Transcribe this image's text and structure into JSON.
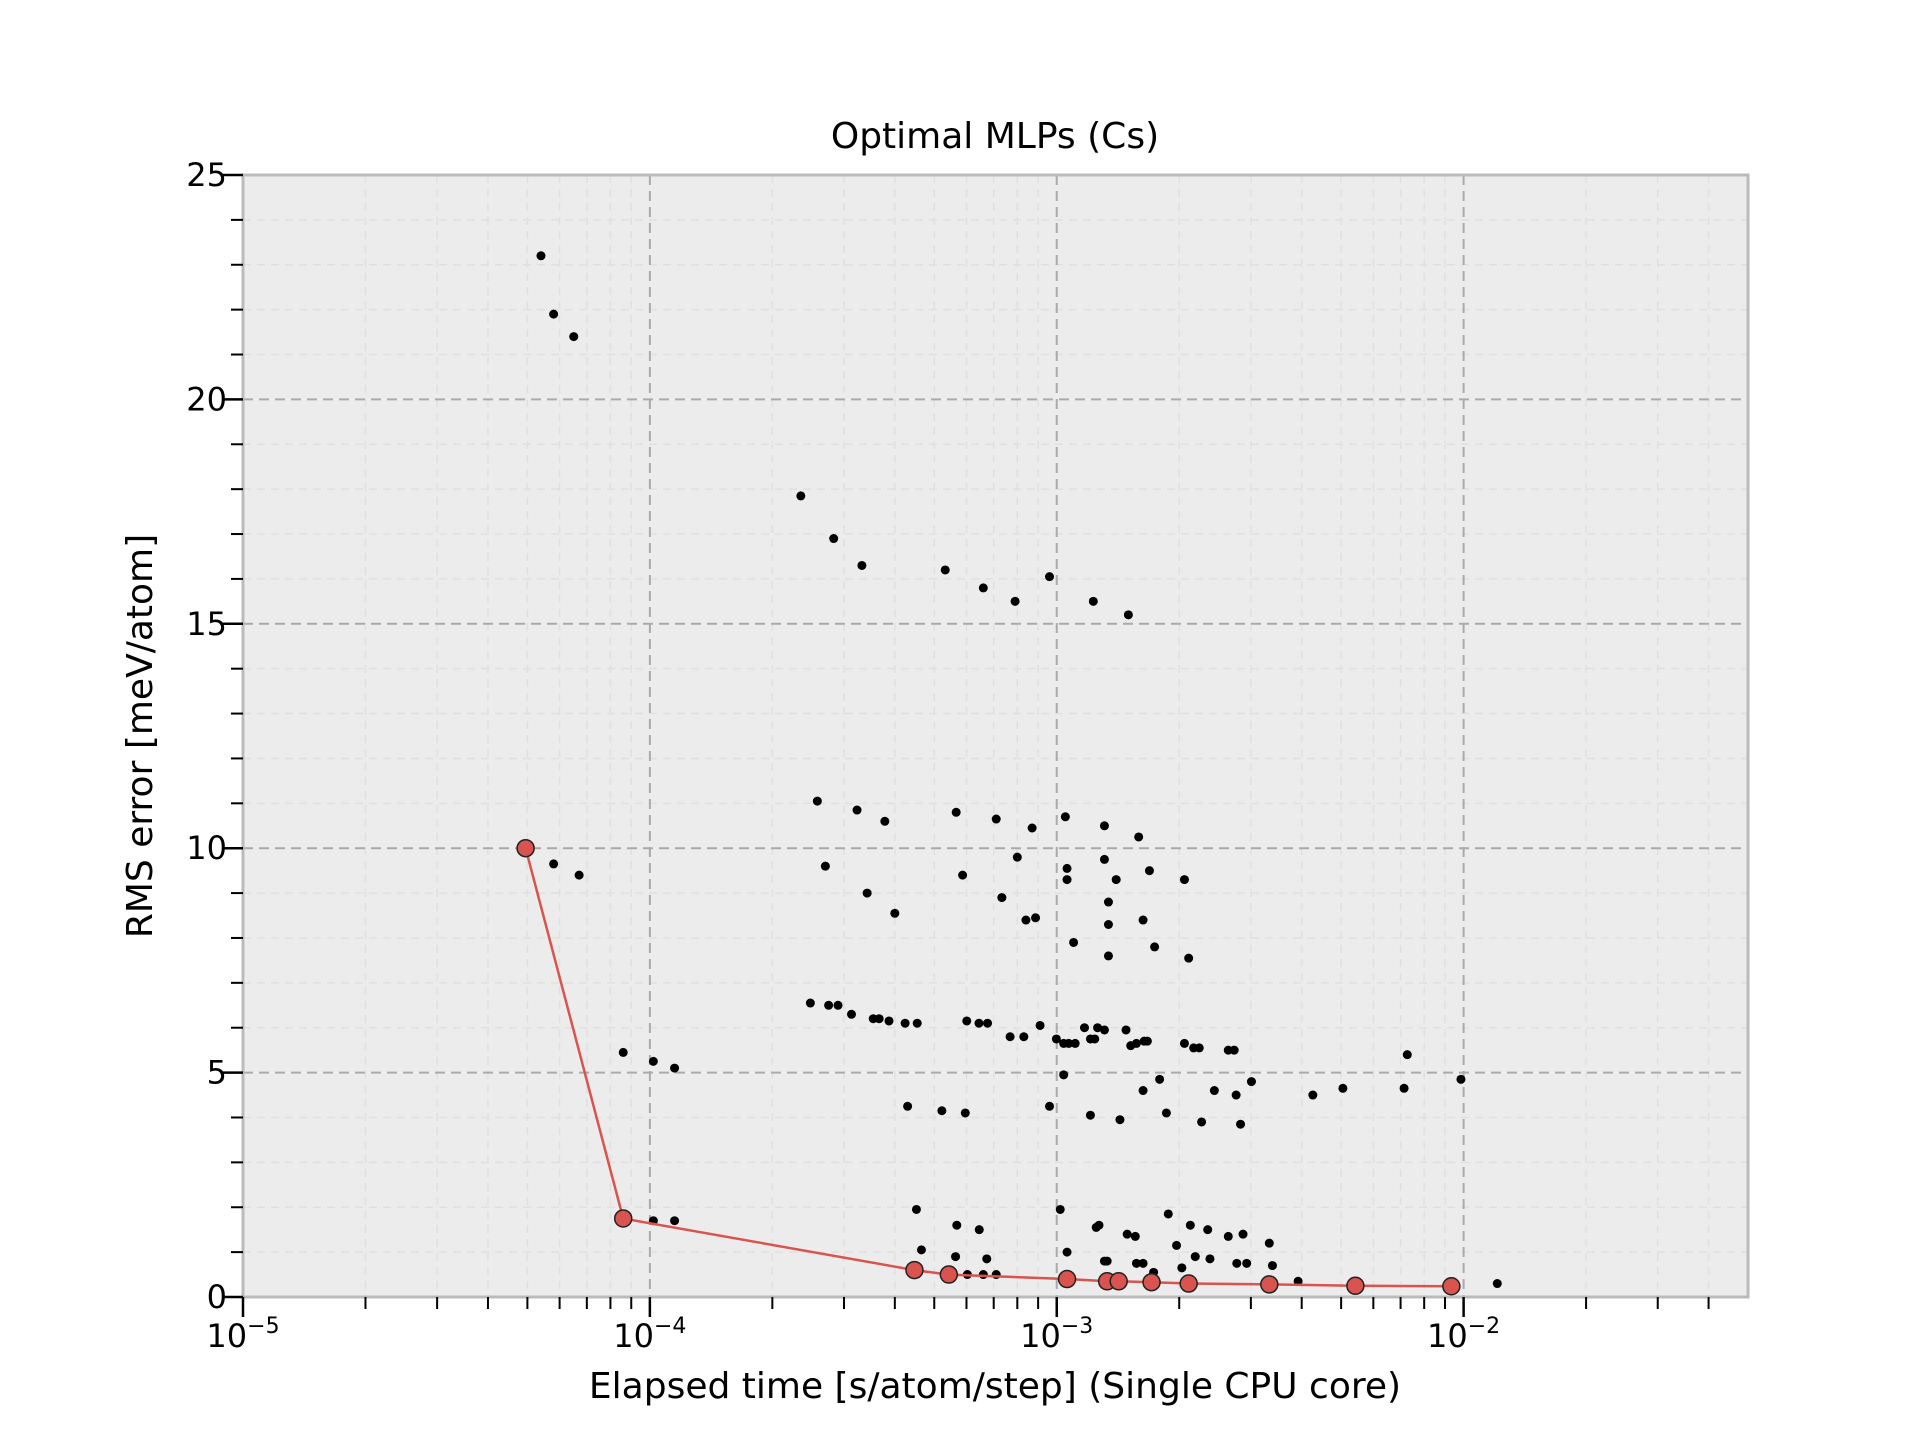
{
  "chart_data": {
    "type": "scatter",
    "title": "Optimal MLPs (Cs)",
    "xlabel": "Elapsed time [s/atom/step] (Single CPU core)",
    "ylabel": "RMS error [meV/atom]",
    "x_scale": "log",
    "xlim": [
      1e-05,
      0.05
    ],
    "ylim": [
      0,
      25
    ],
    "x_ticks": [
      {
        "base": "10",
        "exp": "−5",
        "value": 1e-05
      },
      {
        "base": "10",
        "exp": "−4",
        "value": 0.0001
      },
      {
        "base": "10",
        "exp": "−3",
        "value": 0.001
      },
      {
        "base": "10",
        "exp": "−2",
        "value": 0.01
      }
    ],
    "y_ticks": [
      "0",
      "5",
      "10",
      "15",
      "20",
      "25"
    ],
    "grid": true,
    "colors": {
      "background": "#ececec",
      "pareto": "#d9534f",
      "points": "#000000",
      "frame": "#bbbbbb"
    },
    "series": [
      {
        "role": "all-models",
        "marker": "dot",
        "points": [
          [
            5.4e-05,
            23.2
          ],
          [
            5.8e-05,
            21.9
          ],
          [
            6.5e-05,
            21.4
          ],
          [
            0.000235,
            17.85
          ],
          [
            0.000283,
            16.9
          ],
          [
            0.000332,
            16.3
          ],
          [
            0.000532,
            16.2
          ],
          [
            0.00066,
            15.8
          ],
          [
            0.00079,
            15.5
          ],
          [
            0.00096,
            16.05
          ],
          [
            0.00123,
            15.5
          ],
          [
            0.0015,
            15.2
          ],
          [
            0.000258,
            11.05
          ],
          [
            0.000323,
            10.85
          ],
          [
            0.000378,
            10.6
          ],
          [
            0.000566,
            10.8
          ],
          [
            0.00071,
            10.65
          ],
          [
            0.00087,
            10.45
          ],
          [
            0.00105,
            10.7
          ],
          [
            0.00131,
            10.5
          ],
          [
            0.00159,
            10.25
          ],
          [
            5.8e-05,
            9.65
          ],
          [
            6.7e-05,
            9.4
          ],
          [
            0.00027,
            9.6
          ],
          [
            0.000342,
            9.0
          ],
          [
            0.0004,
            8.55
          ],
          [
            0.000587,
            9.4
          ],
          [
            0.000733,
            8.9
          ],
          [
            0.0008,
            9.8
          ],
          [
            0.00084,
            8.4
          ],
          [
            0.000887,
            8.45
          ],
          [
            0.00106,
            9.55
          ],
          [
            0.00106,
            9.3
          ],
          [
            0.0011,
            7.9
          ],
          [
            0.00131,
            9.75
          ],
          [
            0.00134,
            8.8
          ],
          [
            0.00134,
            8.3
          ],
          [
            0.00134,
            7.6
          ],
          [
            0.0014,
            9.3
          ],
          [
            0.00163,
            8.4
          ],
          [
            0.00169,
            9.5
          ],
          [
            0.00174,
            7.8
          ],
          [
            0.00206,
            9.3
          ],
          [
            0.00211,
            7.55
          ],
          [
            0.000248,
            6.55
          ],
          [
            0.000275,
            6.5
          ],
          [
            0.00029,
            6.5
          ],
          [
            0.000313,
            6.3
          ],
          [
            0.000354,
            6.2
          ],
          [
            0.000366,
            6.2
          ],
          [
            0.000387,
            6.15
          ],
          [
            0.000424,
            6.1
          ],
          [
            0.000454,
            6.1
          ],
          [
            0.000601,
            6.15
          ],
          [
            0.000644,
            6.1
          ],
          [
            0.000676,
            6.1
          ],
          [
            0.000768,
            5.8
          ],
          [
            0.00083,
            5.8
          ],
          [
            0.00091,
            6.05
          ],
          [
            0.000998,
            5.75
          ],
          [
            0.00104,
            5.65
          ],
          [
            0.00107,
            5.65
          ],
          [
            0.00111,
            5.65
          ],
          [
            0.00117,
            6.0
          ],
          [
            0.00121,
            5.75
          ],
          [
            0.00124,
            5.75
          ],
          [
            0.00126,
            6.0
          ],
          [
            0.00131,
            5.95
          ],
          [
            0.00148,
            5.95
          ],
          [
            0.00152,
            5.6
          ],
          [
            0.00157,
            5.65
          ],
          [
            0.00164,
            5.7
          ],
          [
            0.00167,
            5.7
          ],
          [
            0.00206,
            5.65
          ],
          [
            0.00217,
            5.55
          ],
          [
            0.00224,
            5.55
          ],
          [
            0.00264,
            5.5
          ],
          [
            0.00273,
            5.5
          ],
          [
            8.6e-05,
            5.45
          ],
          [
            0.000102,
            5.25
          ],
          [
            0.000115,
            5.1
          ],
          [
            0.00043,
            4.25
          ],
          [
            0.000522,
            4.15
          ],
          [
            0.000596,
            4.1
          ],
          [
            0.00096,
            4.25
          ],
          [
            0.00104,
            4.95
          ],
          [
            0.00121,
            4.05
          ],
          [
            0.00143,
            3.95
          ],
          [
            0.00163,
            4.6
          ],
          [
            0.00179,
            4.85
          ],
          [
            0.00186,
            4.1
          ],
          [
            0.00227,
            3.9
          ],
          [
            0.00244,
            4.6
          ],
          [
            0.00276,
            4.5
          ],
          [
            0.00283,
            3.85
          ],
          [
            0.00301,
            4.8
          ],
          [
            0.00426,
            4.5
          ],
          [
            0.00505,
            4.65
          ],
          [
            0.00714,
            4.65
          ],
          [
            0.00727,
            5.4
          ],
          [
            0.00985,
            4.85
          ],
          [
            0.000102,
            1.7
          ],
          [
            0.000115,
            1.7
          ],
          [
            0.000452,
            1.95
          ],
          [
            0.000465,
            1.05
          ],
          [
            0.000564,
            0.9
          ],
          [
            0.000568,
            1.6
          ],
          [
            0.000645,
            1.5
          ],
          [
            0.000673,
            0.85
          ],
          [
            0.000603,
            0.5
          ],
          [
            0.00066,
            0.5
          ],
          [
            0.00071,
            0.5
          ],
          [
            0.00102,
            1.95
          ],
          [
            0.00106,
            1.0
          ],
          [
            0.00125,
            1.55
          ],
          [
            0.00127,
            1.6
          ],
          [
            0.00131,
            0.8
          ],
          [
            0.00133,
            0.8
          ],
          [
            0.00149,
            1.4
          ],
          [
            0.00156,
            1.35
          ],
          [
            0.00157,
            0.75
          ],
          [
            0.00163,
            0.75
          ],
          [
            0.00173,
            0.55
          ],
          [
            0.00188,
            1.85
          ],
          [
            0.00197,
            1.15
          ],
          [
            0.00203,
            0.65
          ],
          [
            0.00213,
            1.6
          ],
          [
            0.00219,
            0.9
          ],
          [
            0.00235,
            1.5
          ],
          [
            0.00238,
            0.85
          ],
          [
            0.00264,
            1.35
          ],
          [
            0.00277,
            0.75
          ],
          [
            0.00287,
            1.4
          ],
          [
            0.00293,
            0.75
          ],
          [
            0.00333,
            1.2
          ],
          [
            0.00339,
            0.7
          ],
          [
            0.00392,
            0.35
          ],
          [
            0.0121,
            0.3
          ]
        ]
      },
      {
        "role": "pareto-front",
        "marker": "circle",
        "line": true,
        "points": [
          [
            4.95e-05,
            10.0
          ],
          [
            8.6e-05,
            1.75
          ],
          [
            0.000447,
            0.6
          ],
          [
            0.000543,
            0.5
          ],
          [
            0.00106,
            0.4
          ],
          [
            0.00133,
            0.35
          ],
          [
            0.00142,
            0.35
          ],
          [
            0.00171,
            0.33
          ],
          [
            0.00211,
            0.3
          ],
          [
            0.00333,
            0.28
          ],
          [
            0.00542,
            0.25
          ],
          [
            0.00933,
            0.24
          ]
        ]
      }
    ]
  }
}
